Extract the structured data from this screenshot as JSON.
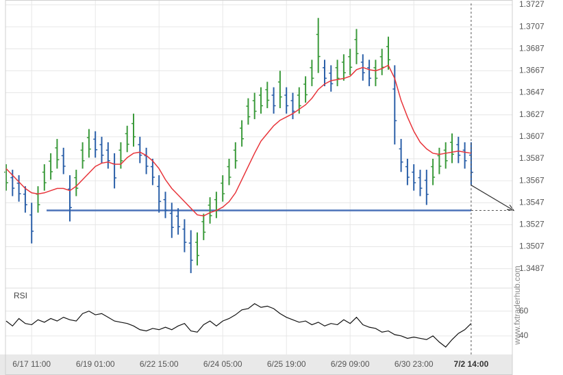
{
  "chart_data": [
    {
      "type": "ohlc",
      "categories": [
        null,
        null,
        null,
        null,
        "6/17 11:00",
        null,
        null,
        null,
        null,
        null,
        null,
        null,
        null,
        null,
        "6/19 01:00",
        null,
        null,
        null,
        null,
        null,
        null,
        null,
        null,
        null,
        "6/22 15:00",
        null,
        null,
        null,
        null,
        null,
        null,
        null,
        null,
        null,
        "6/24 05:00",
        null,
        null,
        null,
        null,
        null,
        null,
        null,
        null,
        null,
        "6/25 19:00",
        null,
        null,
        null,
        null,
        null,
        null,
        null,
        null,
        null,
        "6/29 09:00",
        null,
        null,
        null,
        null,
        null,
        null,
        null,
        null,
        null,
        "6/30 23:00",
        null,
        null,
        null,
        null,
        null,
        null,
        null,
        null,
        "7/2 14:00"
      ],
      "high": [
        1.3582,
        1.3577,
        1.3572,
        1.3562,
        1.3547,
        1.3562,
        1.3582,
        1.3592,
        1.3605,
        1.3597,
        1.3572,
        1.3577,
        1.3602,
        1.3614,
        1.3612,
        1.3607,
        1.3602,
        1.3592,
        1.3602,
        1.3617,
        1.3628,
        1.3607,
        1.3597,
        1.3587,
        1.3572,
        1.3557,
        1.3547,
        1.3542,
        1.3532,
        1.3522,
        1.352,
        1.3537,
        1.3552,
        1.3557,
        1.3572,
        1.3587,
        1.3602,
        1.3622,
        1.3642,
        1.3647,
        1.3652,
        1.3657,
        1.3652,
        1.3667,
        1.3652,
        1.3647,
        1.3652,
        1.3662,
        1.3677,
        1.3715,
        1.3677,
        1.3672,
        1.3677,
        1.3682,
        1.3687,
        1.3705,
        1.3682,
        1.3677,
        1.3677,
        1.3687,
        1.3698,
        1.3672,
        1.3605,
        1.3587,
        1.3582,
        1.3577,
        1.3577,
        1.3587,
        1.3597,
        1.3602,
        1.361,
        1.3607,
        1.3602,
        1.3602
      ],
      "low": [
        1.3558,
        1.3553,
        1.3548,
        1.3538,
        1.351,
        1.3538,
        1.3558,
        1.3568,
        1.3578,
        1.3573,
        1.353,
        1.3553,
        1.3578,
        1.3588,
        1.3588,
        1.3583,
        1.3578,
        1.356,
        1.3578,
        1.3593,
        1.3598,
        1.3583,
        1.3573,
        1.3563,
        1.3538,
        1.3533,
        1.3515,
        1.3518,
        1.3502,
        1.3483,
        1.349,
        1.3513,
        1.3528,
        1.3533,
        1.3548,
        1.3563,
        1.3578,
        1.3598,
        1.3618,
        1.3623,
        1.3628,
        1.3633,
        1.3628,
        1.3633,
        1.3628,
        1.3623,
        1.3628,
        1.3638,
        1.3653,
        1.3665,
        1.3653,
        1.3648,
        1.3653,
        1.3658,
        1.3663,
        1.3673,
        1.3658,
        1.3653,
        1.3653,
        1.3663,
        1.3668,
        1.36,
        1.3575,
        1.3563,
        1.3558,
        1.3553,
        1.3545,
        1.3563,
        1.3573,
        1.3578,
        1.3583,
        1.3583,
        1.3578,
        1.3563
      ],
      "up_color": "#3a9a3a",
      "down_color": "#2a5fa8",
      "moving_average": {
        "color": "#e8343a",
        "values": [
          1.3578,
          1.3572,
          1.3566,
          1.356,
          1.3556,
          1.3555,
          1.3556,
          1.3558,
          1.356,
          1.356,
          1.3558,
          1.3562,
          1.3568,
          1.3574,
          1.358,
          1.3583,
          1.3584,
          1.3582,
          1.3582,
          1.3588,
          1.3592,
          1.3593,
          1.359,
          1.3585,
          1.3578,
          1.3568,
          1.356,
          1.3554,
          1.3548,
          1.3542,
          1.3536,
          1.3535,
          1.3538,
          1.354,
          1.3543,
          1.3548,
          1.3556,
          1.3568,
          1.358,
          1.3592,
          1.3603,
          1.361,
          1.3617,
          1.3622,
          1.3625,
          1.3628,
          1.3632,
          1.3636,
          1.3642,
          1.365,
          1.3655,
          1.3658,
          1.3659,
          1.366,
          1.3662,
          1.3668,
          1.367,
          1.3668,
          1.3667,
          1.3669,
          1.3672,
          1.366,
          1.364,
          1.3625,
          1.3612,
          1.3602,
          1.3596,
          1.3592,
          1.3591,
          1.3592,
          1.3593,
          1.3594,
          1.3593,
          1.3592
        ]
      },
      "support": {
        "value": 1.354,
        "color": "#4a72b8"
      },
      "ylim": [
        1.347,
        1.3727
      ],
      "yticks": [
        1.3727,
        1.3707,
        1.3687,
        1.3667,
        1.3647,
        1.3627,
        1.3607,
        1.3587,
        1.3567,
        1.3547,
        1.3527,
        1.3507,
        1.3487
      ],
      "grid": true
    },
    {
      "type": "line",
      "title": "RSI",
      "color": "#111111",
      "values": [
        52,
        48,
        54,
        50,
        49,
        53,
        51,
        54,
        52,
        55,
        53,
        52,
        58,
        60,
        57,
        58,
        55,
        52,
        51,
        50,
        48,
        45,
        44,
        46,
        45,
        47,
        45,
        48,
        50,
        44,
        43,
        49,
        52,
        48,
        52,
        54,
        57,
        61,
        62,
        66,
        63,
        64,
        62,
        58,
        55,
        53,
        51,
        52,
        49,
        51,
        48,
        50,
        49,
        53,
        50,
        55,
        49,
        47,
        46,
        43,
        44,
        41,
        40,
        38,
        39,
        38,
        37,
        40,
        35,
        31,
        37,
        42,
        45,
        50
      ],
      "ylim": [
        25,
        78
      ],
      "yticks": [
        40,
        60
      ],
      "grid": true
    }
  ],
  "watermark": "www.fxtraderhub.com"
}
